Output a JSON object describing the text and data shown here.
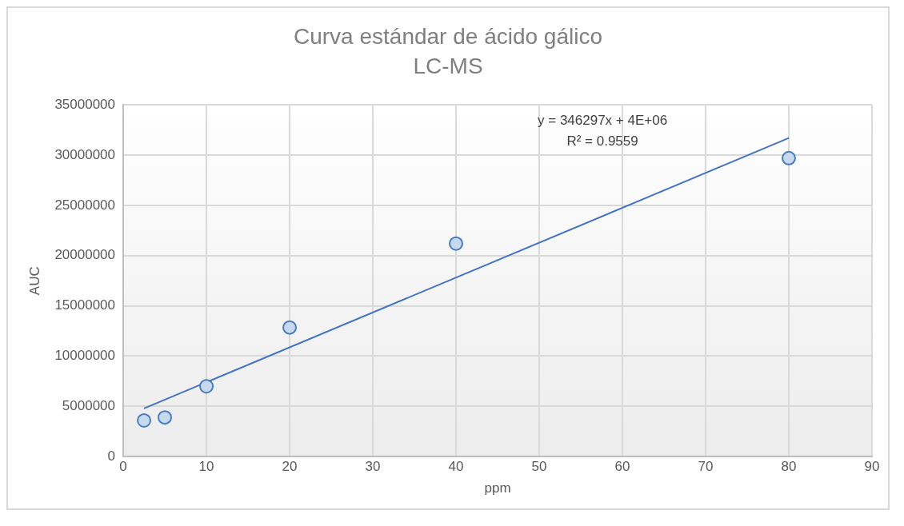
{
  "chart_data": {
    "type": "scatter",
    "title": "Curva estándar de ácido gálico",
    "subtitle": "LC-MS",
    "xlabel": "ppm",
    "ylabel": "AUC",
    "series": [
      {
        "marker": "circle",
        "color": "#c6d9f1",
        "x": [
          2.5,
          5,
          10,
          20,
          40,
          80
        ],
        "values": [
          3600000,
          3900000,
          7000000,
          12850000,
          21200000,
          29700000
        ]
      },
      {
        "type": "line",
        "marker": "none",
        "color": "#4472c4",
        "x": [
          2.5,
          80
        ],
        "values": [
          4800000,
          31700000
        ]
      }
    ],
    "xlim": [
      0,
      90
    ],
    "xticks": [
      0,
      10,
      20,
      30,
      40,
      50,
      60,
      70,
      80,
      90
    ],
    "ylim": [
      0,
      35000000
    ],
    "yticks": [
      0,
      5000000,
      10000000,
      15000000,
      20000000,
      25000000,
      30000000,
      35000000
    ],
    "grid": true,
    "legend": false,
    "line_style": "solid",
    "annotations": [
      "y = 346297x + 4E+06",
      "R² = 0.9559"
    ]
  }
}
